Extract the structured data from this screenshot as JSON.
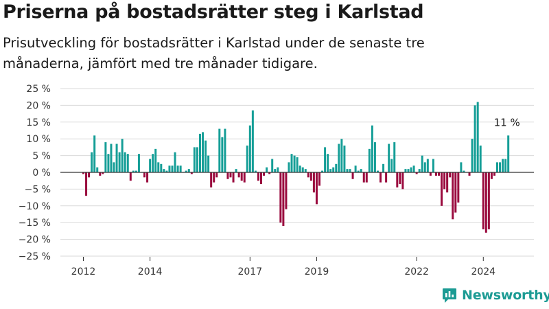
{
  "title": "Priserna på bostadsrätter steg i Karlstad",
  "subtitle": "Prisutveckling för bostadsrätter i Karlstad under de senaste tre månaderna, jämfört med tre månader tidigare.",
  "brand": {
    "name": "Newsworthy",
    "icon": "newsworthy-logo-icon",
    "color": "#1c9b94"
  },
  "colors": {
    "positive": "#159e97",
    "negative": "#9a0a3e",
    "zero_line": "#333333",
    "grid": "#d9d9d9"
  },
  "chart_data": {
    "type": "bar",
    "title": "Priserna på bostadsrätter steg i Karlstad",
    "xlabel": "",
    "ylabel": "",
    "ylim": [
      -25,
      25
    ],
    "y_ticks": [
      25,
      20,
      15,
      10,
      5,
      0,
      -5,
      -10,
      -15,
      -20,
      -25
    ],
    "y_tick_labels": [
      "25 %",
      "20 %",
      "15 %",
      "10 %",
      "5 %",
      "0 %",
      "−5 %",
      "−10 %",
      "−15 %",
      "−20 %",
      "−25 %"
    ],
    "x_tick_labels": [
      "2012",
      "2014",
      "2017",
      "2019",
      "2022",
      "2024"
    ],
    "x_tick_months": [
      12,
      36,
      72,
      96,
      132,
      156
    ],
    "start": "2011-09",
    "end": "2024-12",
    "grid": "horizontal",
    "annotation": {
      "text": "11 %",
      "target": "last"
    },
    "values": [
      -0.5,
      -7,
      -1.5,
      6,
      11,
      1.5,
      -1,
      -0.5,
      9,
      5.5,
      8.5,
      3,
      8.5,
      6,
      10,
      6,
      5.5,
      -2.5,
      0.5,
      0.5,
      5.5,
      0,
      -1.5,
      -3,
      4,
      5.5,
      7,
      3,
      2.5,
      1,
      0.5,
      2,
      2,
      6,
      2,
      2,
      0,
      0.5,
      1,
      -0.5,
      7.5,
      7.5,
      11.5,
      12,
      9.5,
      5,
      -4.5,
      -3,
      -1.5,
      13,
      10.5,
      13,
      -2,
      -1.5,
      -3,
      1,
      -1.5,
      -2.5,
      -3,
      8,
      14,
      18.5,
      0.5,
      -2.5,
      -3.5,
      -1,
      1.5,
      -0.5,
      4,
      1,
      1.5,
      -15,
      -16,
      -11,
      3,
      5.5,
      5,
      4.5,
      2,
      1.5,
      1,
      -1.5,
      -2.5,
      -6,
      -9.5,
      -4,
      0.5,
      7.5,
      5.5,
      1,
      1.5,
      2.5,
      8.5,
      10,
      8,
      1,
      1,
      -2,
      2,
      0.5,
      1,
      -3,
      -3,
      7,
      14,
      9,
      0.5,
      -3,
      2.5,
      -3,
      8.5,
      4,
      9,
      -4.5,
      -3.5,
      -5,
      1,
      1,
      1.5,
      2,
      -0.5,
      1,
      5,
      3,
      4,
      -1,
      4,
      -1,
      -1,
      -10,
      -5,
      -6,
      -1.5,
      -14,
      -12,
      -9,
      3,
      0.5,
      0,
      -1,
      10,
      20,
      21,
      8,
      -17,
      -18,
      -17,
      -2,
      -1,
      3,
      3,
      4,
      4,
      11
    ]
  }
}
